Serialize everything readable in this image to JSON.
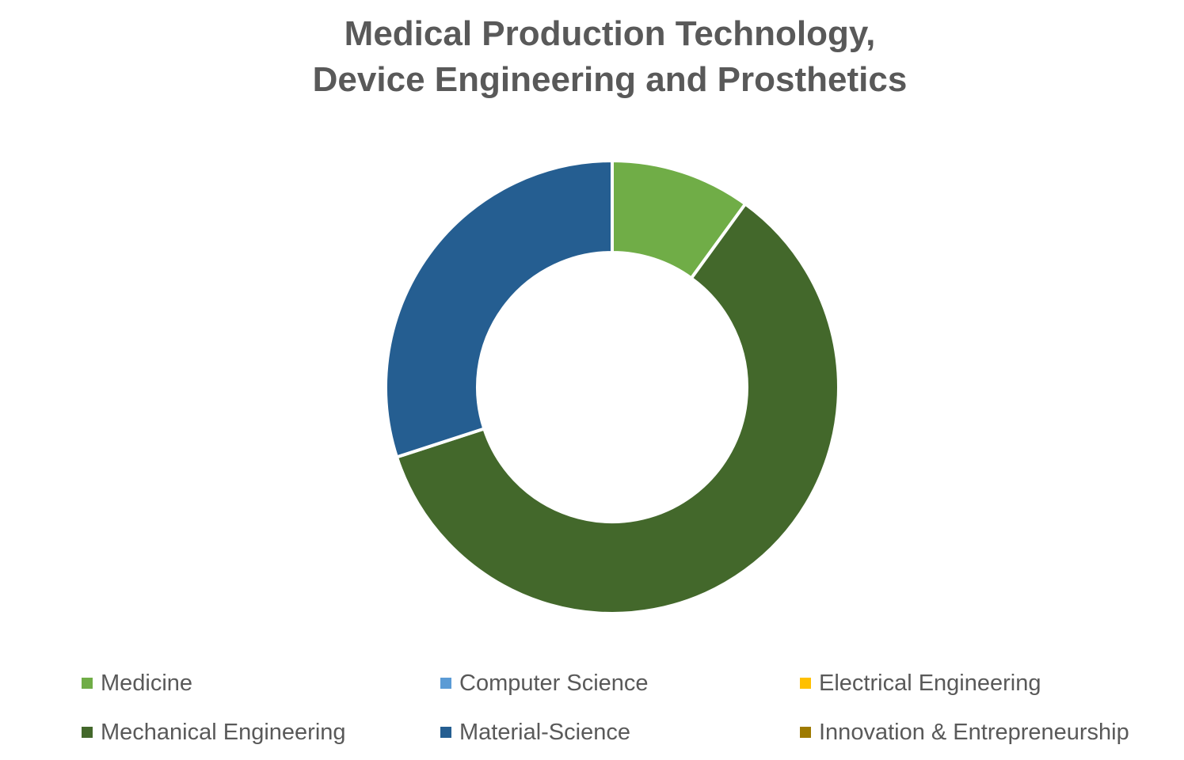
{
  "chart_data": {
    "type": "pie",
    "subtype": "donut",
    "title": [
      "Medical Production Technology,",
      "Device Engineering and Prosthetics"
    ],
    "categories": [
      "Medicine",
      "Computer Science",
      "Electrical Engineering",
      "Mechanical Engineering",
      "Material-Science",
      "Innovation & Entrepreneurship"
    ],
    "values": [
      10,
      0,
      0,
      60,
      30,
      0
    ],
    "colors": [
      "#70AD47",
      "#5B9BD5",
      "#FFC000",
      "#43682B",
      "#255E91",
      "#9E7A00"
    ],
    "legend": "bottom"
  }
}
